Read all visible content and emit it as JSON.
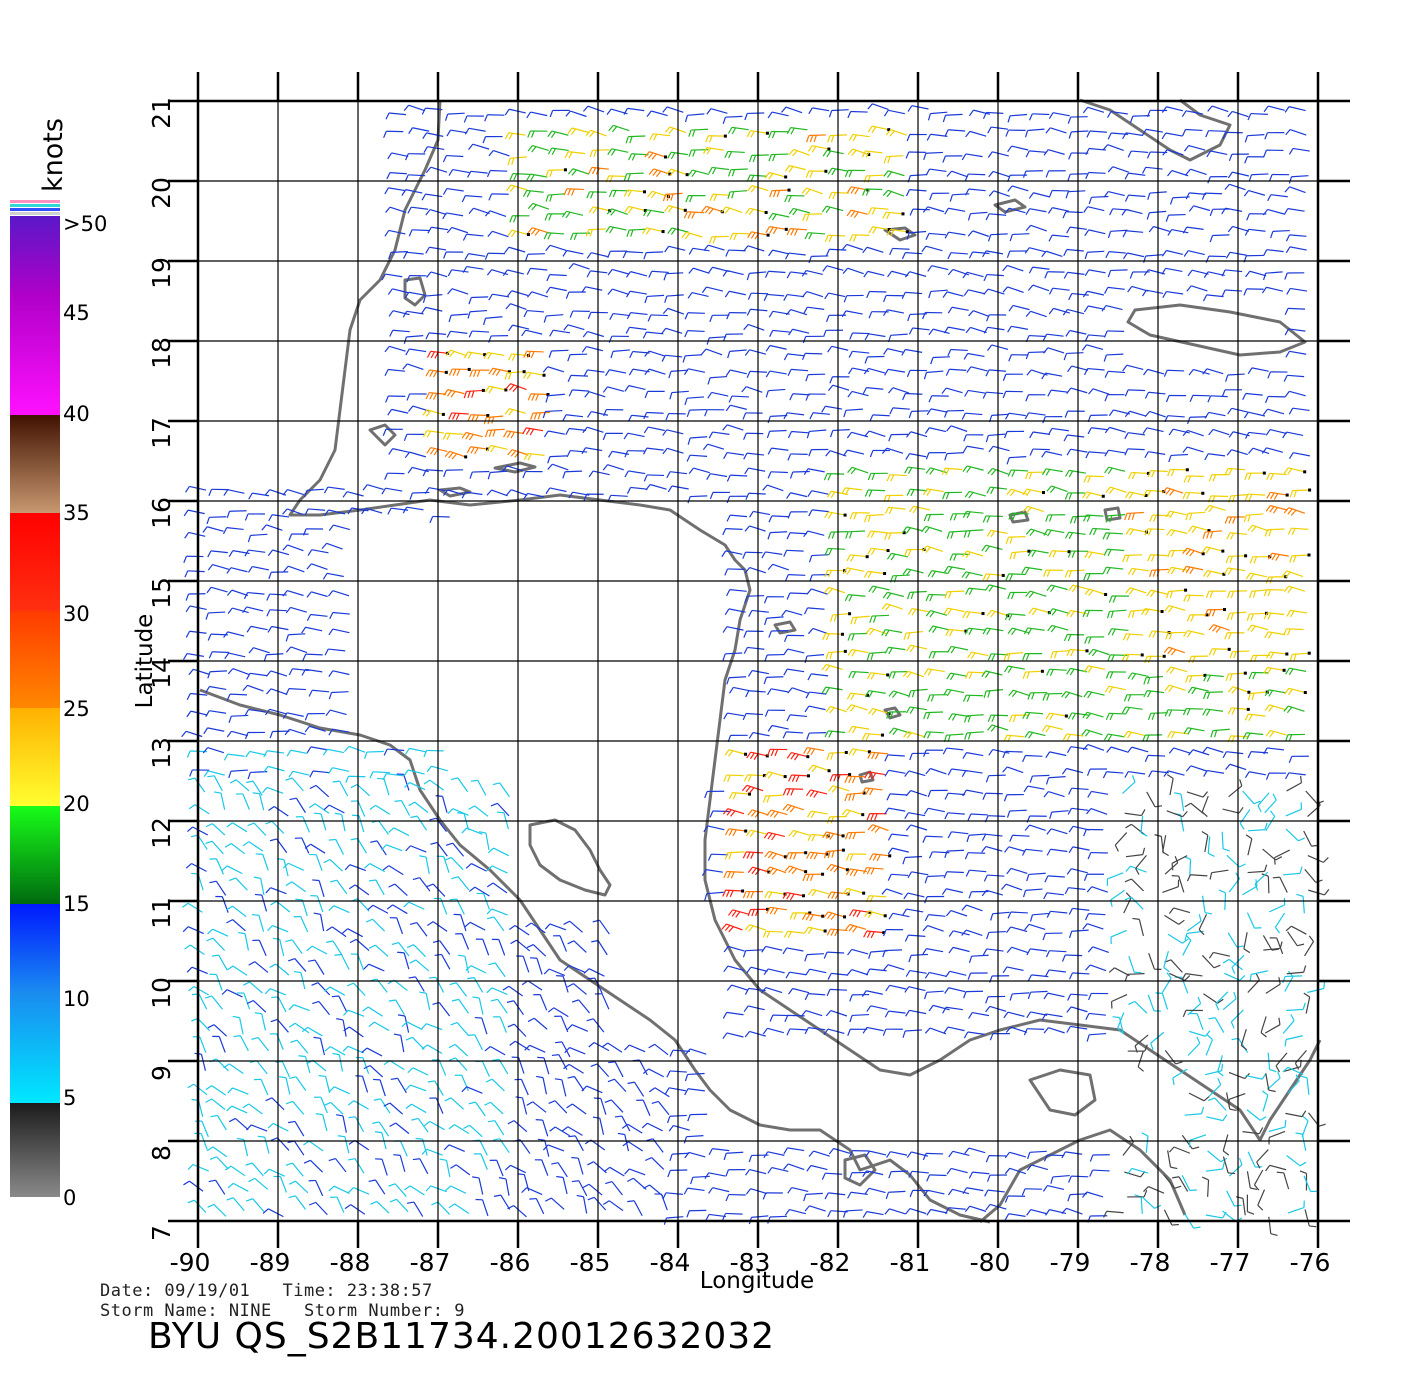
{
  "legend": {
    "unit_label": "knots",
    "ticks": [
      ">50",
      "45",
      "40",
      "35",
      "30",
      "25",
      "20",
      "15",
      "10",
      "5",
      "0"
    ]
  },
  "axes": {
    "xlabel": "Longitude",
    "ylabel": "Latitude",
    "xticks": [
      "-90",
      "-89",
      "-88",
      "-87",
      "-86",
      "-85",
      "-84",
      "-83",
      "-82",
      "-81",
      "-80",
      "-79",
      "-78",
      "-77",
      "-76"
    ],
    "yticks": [
      "7",
      "8",
      "9",
      "10",
      "11",
      "12",
      "13",
      "14",
      "15",
      "16",
      "17",
      "18",
      "19",
      "20",
      "21"
    ]
  },
  "footer": {
    "date_line": "Date: 09/19/01   Time: 23:38:57",
    "storm_line": "Storm Name: NINE   Storm Number: 9",
    "product_id": "BYU  QS_S2B11734.20012632032"
  },
  "colors": {
    "land_outline": "#707070",
    "speed_0_5": "#444444",
    "speed_5_10": "#19c8e8",
    "speed_10_15": "#1a3ad8",
    "speed_15_20": "#22b822",
    "speed_20_25": "#f0d000",
    "speed_25_30": "#ff7a00",
    "speed_30_35": "#ff2010",
    "speed_35_40": "#8b4a2a",
    "speed_40_50": "#e020e0",
    "speed_50_plus": "#6a10c8"
  },
  "map_extent": {
    "lon_range": [
      -90,
      -76
    ],
    "lat_range": [
      7,
      21
    ]
  }
}
